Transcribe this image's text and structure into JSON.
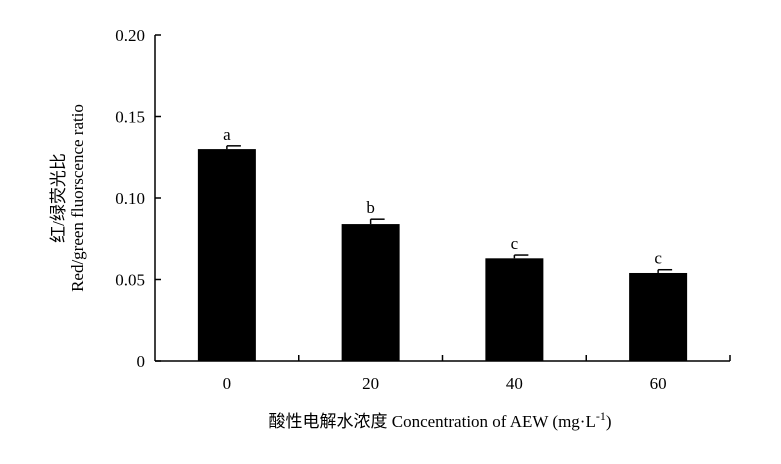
{
  "chart_data": {
    "type": "bar",
    "categories": [
      "0",
      "20",
      "40",
      "60"
    ],
    "values": [
      0.13,
      0.084,
      0.063,
      0.054
    ],
    "errors": [
      0.002,
      0.003,
      0.002,
      0.002
    ],
    "significance_labels": [
      "a",
      "b",
      "c",
      "c"
    ],
    "xlabel": "酸性电解水浓度 Concentration of AEW (mg·L",
    "xlabel_superscript": "-1",
    "xlabel_suffix": ")",
    "ylabel_cn": "红/绿荧光比",
    "ylabel_en": "Red/green fluorscence ratio",
    "ylim": [
      0,
      0.2
    ],
    "yticks": [
      "0",
      "0.05",
      "0.10",
      "0.15",
      "0.20"
    ],
    "ytick_values": [
      0,
      0.05,
      0.1,
      0.15,
      0.2
    ],
    "bar_color": "#000000",
    "ylabel_cn_color": "#7f7f7f",
    "grid": false
  }
}
